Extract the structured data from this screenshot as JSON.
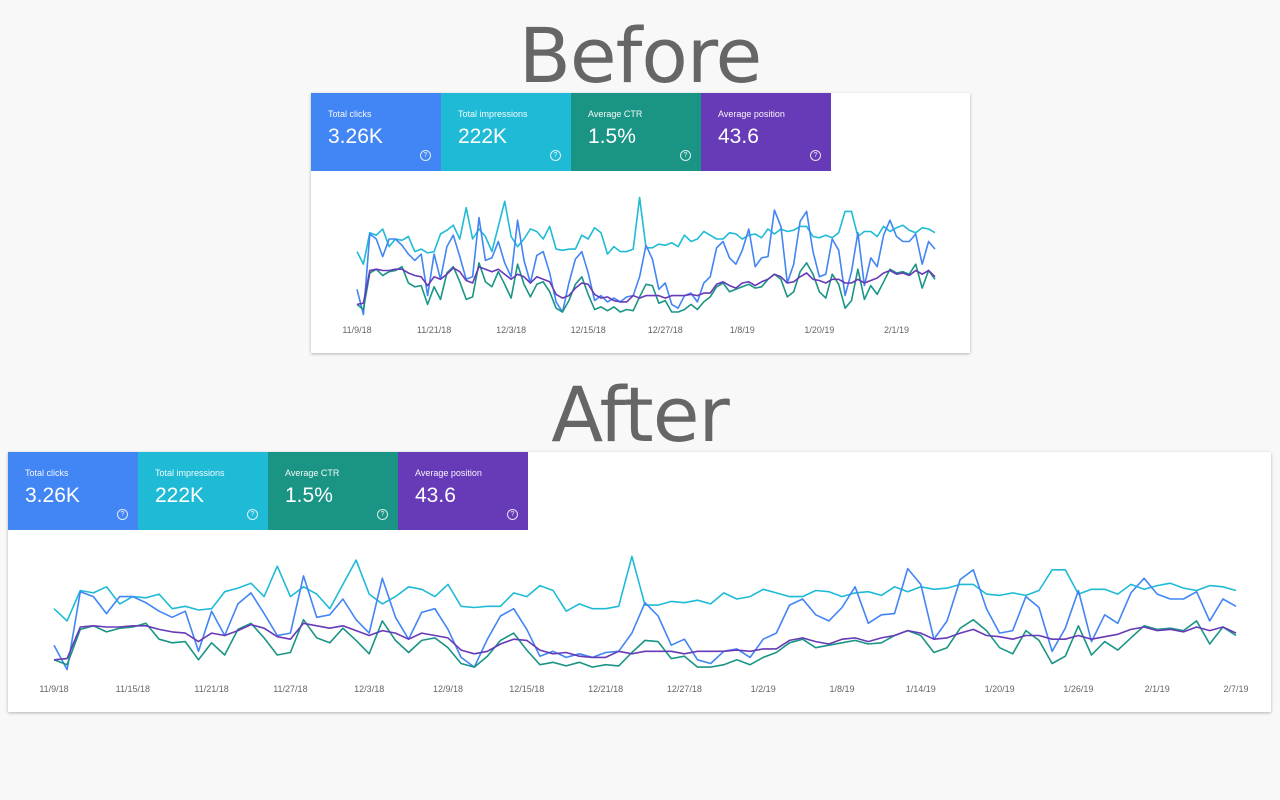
{
  "headings": {
    "before": "Before",
    "after": "After"
  },
  "cards": [
    {
      "label": "Total clicks",
      "value": "3.26K",
      "color": "#4285f4"
    },
    {
      "label": "Total impressions",
      "value": "222K",
      "color": "#1fbbd6"
    },
    {
      "label": "Average CTR",
      "value": "1.5%",
      "color": "#1a9585"
    },
    {
      "label": "Average position",
      "value": "43.6",
      "color": "#673ab7"
    }
  ],
  "help_glyph": "?",
  "chart_data": [
    {
      "type": "line",
      "panel": "before",
      "tick_labels": [
        "11/9/18",
        "11/21/18",
        "12/3/18",
        "12/15/18",
        "12/27/18",
        "1/8/19",
        "1/20/19",
        "2/1/19"
      ],
      "x_ticks_at_index": [
        0,
        12,
        24,
        36,
        48,
        60,
        72,
        84
      ],
      "grid": false,
      "series": [
        {
          "color": "#1fbbd6",
          "values": [
            6,
            5,
            7.5,
            7.3,
            7.8,
            6.4,
            7,
            6.9,
            7.2,
            6,
            6.2,
            5.9,
            6,
            7.4,
            7.7,
            8.1,
            7,
            9.5,
            7,
            7.8,
            7.2,
            6,
            8,
            10,
            7.2,
            6.4,
            7,
            7.8,
            7.6,
            7,
            8,
            6.2,
            6.1,
            6.2,
            6.2,
            7.3,
            7,
            7.9,
            7.5,
            5.8,
            6.4,
            6,
            6,
            6.2,
            10.3,
            6.3,
            6.3,
            6.6,
            6.5,
            6.7,
            6.4,
            7.3,
            6.8,
            7,
            7.6,
            7.3,
            7,
            7,
            7.5,
            7.4,
            7,
            7.3,
            7.4,
            7.1,
            7.8,
            7.4,
            7.8,
            7.6,
            7.7,
            8,
            8,
            7.2,
            7.1,
            7.3,
            7.1,
            7.5,
            9.2,
            9.2,
            7.2,
            7.6,
            7.6,
            7.2,
            8,
            7.6,
            7.9,
            8.1,
            7.7,
            7.5,
            7.9,
            7.8,
            7.5
          ]
        },
        {
          "color": "#4285f4",
          "values": [
            3,
            1,
            7.4,
            7,
            5.6,
            7,
            7,
            6.5,
            5.8,
            5.3,
            5.8,
            2.5,
            5.8,
            3.8,
            6.4,
            7.3,
            5.6,
            3.8,
            4,
            8.7,
            5.3,
            5.5,
            6.8,
            5.1,
            4,
            8.5,
            5.3,
            3.5,
            5.7,
            6,
            4.3,
            2,
            1.2,
            3.5,
            5.4,
            6,
            4.3,
            2.1,
            2.5,
            2,
            2.3,
            2,
            2.4,
            2.5,
            4,
            6.5,
            5.4,
            3,
            3.5,
            1.8,
            1.5,
            2.5,
            2.7,
            2,
            3.5,
            4,
            6.3,
            6.8,
            5.5,
            5,
            6.1,
            7.8,
            4.8,
            5.5,
            5.6,
            9.3,
            8,
            3.5,
            5,
            8.4,
            9.2,
            6,
            4,
            4.2,
            7,
            6.1,
            2.5,
            4.4,
            7.5,
            3.3,
            5.5,
            4.8,
            7.3,
            8.5,
            7.2,
            6.8,
            6.8,
            7.4,
            5,
            6.8,
            6.2
          ]
        },
        {
          "color": "#1a9585",
          "values": [
            1.8,
            1.4,
            4.3,
            4.6,
            4.1,
            4.4,
            4.5,
            4.8,
            3.5,
            3.2,
            3.3,
            1.8,
            3.2,
            2.2,
            4.3,
            4.8,
            3.6,
            2.2,
            2.4,
            5.1,
            3.6,
            3.2,
            4.4,
            3.4,
            2.3,
            5,
            3.4,
            2.4,
            3.4,
            3.6,
            2.8,
            1.5,
            1.2,
            2.1,
            3.4,
            4,
            2.6,
            1.4,
            1.6,
            1.3,
            1.6,
            1.2,
            1.4,
            1.3,
            2.4,
            3.4,
            3.3,
            1.9,
            2.1,
            1.2,
            1.2,
            1.4,
            1.8,
            1.4,
            2,
            2.4,
            3.2,
            3.5,
            2.8,
            3,
            3.2,
            3.4,
            3.1,
            3.2,
            3.8,
            4.2,
            3.8,
            2.4,
            2.8,
            4.4,
            5.1,
            4.2,
            2.8,
            2.3,
            4.2,
            3.4,
            1.5,
            2.1,
            4.6,
            2.2,
            3.3,
            2.6,
            3.6,
            4.6,
            4.3,
            4.4,
            4.2,
            5,
            3.1,
            4.5,
            3.8
          ]
        },
        {
          "color": "#673ab7",
          "values": [
            1.8,
            1.9,
            4.5,
            4.6,
            4.5,
            4.5,
            4.6,
            4.6,
            4.3,
            4.1,
            4,
            3.3,
            4,
            3.8,
            4.2,
            4.7,
            4.4,
            3.7,
            3.5,
            4.8,
            4.6,
            4.4,
            4.6,
            4.2,
            3.8,
            4.2,
            4,
            3.5,
            4,
            3.8,
            3.6,
            2.6,
            2.3,
            2.5,
            3.1,
            3.5,
            3.4,
            2.6,
            2.3,
            2.4,
            2.1,
            2,
            2,
            2.5,
            2.3,
            2.5,
            2.5,
            2.5,
            2.3,
            2.5,
            2.5,
            2.5,
            2.6,
            2.5,
            2.7,
            2.7,
            3.4,
            3.6,
            3.3,
            3.1,
            3.5,
            3.6,
            3.3,
            3.6,
            3.8,
            4.2,
            4,
            3.5,
            3.6,
            4,
            4.3,
            3.8,
            3.7,
            3.5,
            3.8,
            3.8,
            3.5,
            3.5,
            3.8,
            3.5,
            3.7,
            3.9,
            4.3,
            4.5,
            4.2,
            4.3,
            4.1,
            4.5,
            4.2,
            4.5,
            4
          ]
        }
      ]
    },
    {
      "type": "line",
      "panel": "after",
      "tick_labels": [
        "11/9/18",
        "11/15/18",
        "11/21/18",
        "11/27/18",
        "12/3/18",
        "12/9/18",
        "12/15/18",
        "12/21/18",
        "12/27/18",
        "1/2/19",
        "1/8/19",
        "1/14/19",
        "1/20/19",
        "1/26/19",
        "2/1/19",
        "2/7/19"
      ],
      "x_ticks_at_index": [
        0,
        6,
        12,
        18,
        24,
        30,
        36,
        42,
        48,
        54,
        60,
        66,
        72,
        78,
        84,
        90
      ],
      "grid": false,
      "series": [
        {
          "color": "#1fbbd6",
          "values": [
            6,
            5,
            7.5,
            7.3,
            7.8,
            6.4,
            7,
            6.9,
            7.2,
            6,
            6.2,
            5.9,
            6,
            7.4,
            7.7,
            8.1,
            7,
            9.5,
            7,
            7.8,
            7.2,
            6,
            8,
            10,
            7.2,
            6.4,
            7,
            7.8,
            7.6,
            7,
            8,
            6.2,
            6.1,
            6.2,
            6.2,
            7.3,
            7,
            7.9,
            7.5,
            5.8,
            6.4,
            6,
            6,
            6.2,
            10.3,
            6.3,
            6.3,
            6.6,
            6.5,
            6.7,
            6.4,
            7.3,
            6.8,
            7,
            7.6,
            7.3,
            7,
            7,
            7.5,
            7.4,
            7,
            7.3,
            7.4,
            7.1,
            7.8,
            7.4,
            7.8,
            7.6,
            7.7,
            8,
            8,
            7.2,
            7.1,
            7.3,
            7.1,
            7.5,
            9.2,
            9.2,
            7.2,
            7.6,
            7.6,
            7.2,
            8,
            7.6,
            7.9,
            8.1,
            7.7,
            7.5,
            7.9,
            7.8,
            7.5
          ]
        },
        {
          "color": "#4285f4",
          "values": [
            3,
            1,
            7.4,
            7,
            5.6,
            7,
            7,
            6.5,
            5.8,
            5.3,
            5.8,
            2.5,
            5.8,
            3.8,
            6.4,
            7.3,
            5.6,
            3.8,
            4,
            8.7,
            5.3,
            5.5,
            6.8,
            5.1,
            4,
            8.5,
            5.3,
            3.5,
            5.7,
            6,
            4.3,
            2,
            1.2,
            3.5,
            5.4,
            6,
            4.3,
            2.1,
            2.5,
            2,
            2.3,
            2,
            2.4,
            2.5,
            4,
            6.5,
            5.4,
            3,
            3.5,
            1.8,
            1.5,
            2.5,
            2.7,
            2,
            3.5,
            4,
            6.3,
            6.8,
            5.5,
            5,
            6.1,
            7.8,
            4.8,
            5.5,
            5.6,
            9.3,
            8,
            3.5,
            5,
            8.4,
            9.2,
            6,
            4,
            4.2,
            7,
            6.1,
            2.5,
            4.4,
            7.5,
            3.3,
            5.5,
            4.8,
            7.3,
            8.5,
            7.2,
            6.8,
            6.8,
            7.4,
            5,
            6.8,
            6.2
          ]
        },
        {
          "color": "#1a9585",
          "values": [
            1.8,
            1.4,
            4.3,
            4.6,
            4.1,
            4.4,
            4.5,
            4.8,
            3.5,
            3.2,
            3.3,
            1.8,
            3.2,
            2.2,
            4.3,
            4.8,
            3.6,
            2.2,
            2.4,
            5.1,
            3.6,
            3.2,
            4.4,
            3.4,
            2.3,
            5,
            3.4,
            2.4,
            3.4,
            3.6,
            2.8,
            1.5,
            1.2,
            2.1,
            3.4,
            4,
            2.6,
            1.4,
            1.6,
            1.3,
            1.6,
            1.2,
            1.4,
            1.3,
            2.4,
            3.4,
            3.3,
            1.9,
            2.1,
            1.2,
            1.2,
            1.4,
            1.8,
            1.4,
            2,
            2.4,
            3.2,
            3.5,
            2.8,
            3,
            3.2,
            3.4,
            3.1,
            3.2,
            3.8,
            4.2,
            3.8,
            2.4,
            2.8,
            4.4,
            5.1,
            4.2,
            2.8,
            2.3,
            4.2,
            3.4,
            1.5,
            2.1,
            4.6,
            2.2,
            3.3,
            2.6,
            3.6,
            4.6,
            4.3,
            4.4,
            4.2,
            5,
            3.1,
            4.5,
            3.8
          ]
        },
        {
          "color": "#673ab7",
          "values": [
            1.8,
            1.9,
            4.5,
            4.6,
            4.5,
            4.5,
            4.6,
            4.6,
            4.3,
            4.1,
            4,
            3.3,
            4,
            3.8,
            4.2,
            4.7,
            4.4,
            3.7,
            3.5,
            4.8,
            4.6,
            4.4,
            4.6,
            4.2,
            3.8,
            4.2,
            4,
            3.5,
            4,
            3.8,
            3.6,
            2.6,
            2.3,
            2.5,
            3.1,
            3.5,
            3.4,
            2.6,
            2.3,
            2.4,
            2.1,
            2,
            2,
            2.5,
            2.3,
            2.5,
            2.5,
            2.5,
            2.3,
            2.5,
            2.5,
            2.5,
            2.6,
            2.5,
            2.7,
            2.7,
            3.4,
            3.6,
            3.3,
            3.1,
            3.5,
            3.6,
            3.3,
            3.6,
            3.8,
            4.2,
            4,
            3.5,
            3.6,
            4,
            4.3,
            3.8,
            3.7,
            3.5,
            3.8,
            3.8,
            3.5,
            3.5,
            3.8,
            3.5,
            3.7,
            3.9,
            4.3,
            4.5,
            4.2,
            4.3,
            4.1,
            4.5,
            4.2,
            4.5,
            4
          ]
        }
      ]
    }
  ]
}
